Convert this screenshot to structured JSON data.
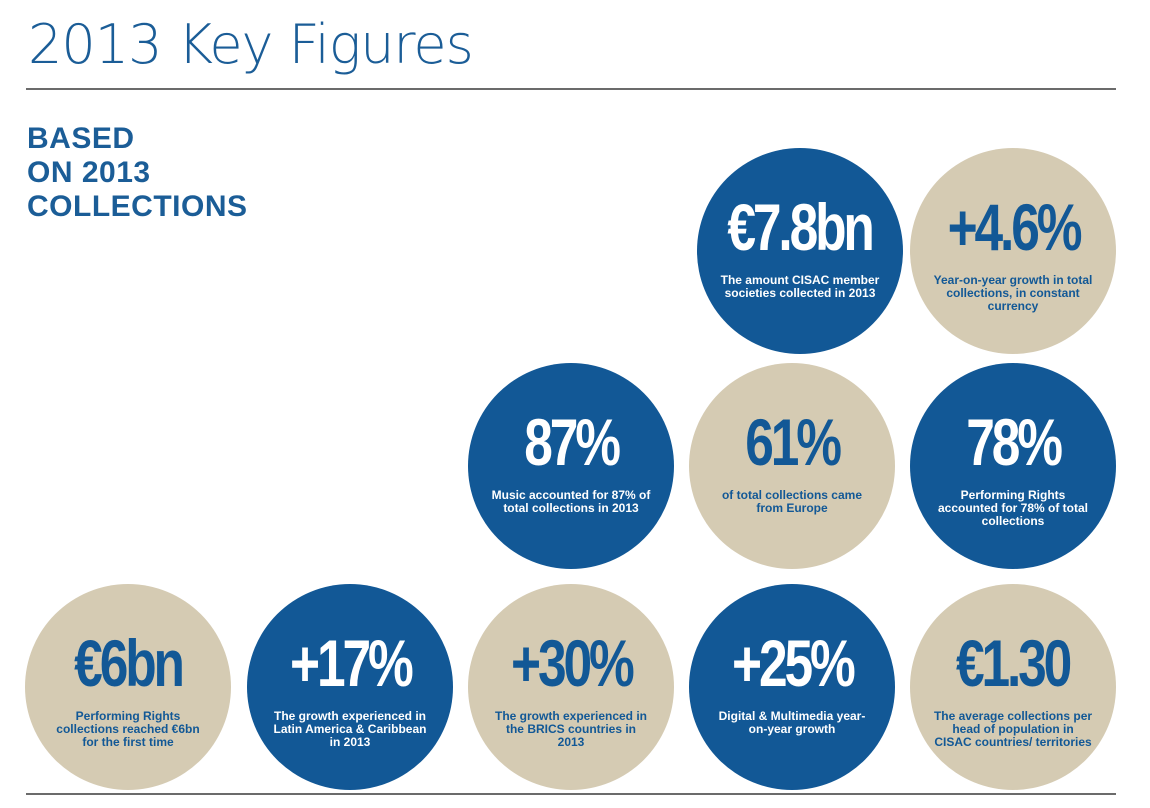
{
  "header": {
    "title": "2013 Key Figures"
  },
  "subtitle": {
    "lines": [
      "BASED",
      "ON 2013",
      "COLLECTIONS"
    ]
  },
  "colors": {
    "blue": "#125896",
    "beige": "#d5cbb3",
    "title_blue": "#1b5d97"
  },
  "figures": [
    {
      "value": "€7.8bn",
      "description": "The amount CISAC member societies collected in 2013",
      "color": "blue"
    },
    {
      "value": "+4.6%",
      "description": "Year-on-year growth in total collections, in constant currency",
      "color": "beige"
    },
    {
      "value": "87%",
      "description": "Music accounted for 87% of total collections in 2013",
      "color": "blue"
    },
    {
      "value": "61%",
      "description": "of total collections came from Europe",
      "color": "beige"
    },
    {
      "value": "78%",
      "description": "Performing Rights accounted for 78% of total collections",
      "color": "blue"
    },
    {
      "value": "€6bn",
      "description": "Performing Rights collections reached €6bn for the first time",
      "color": "beige"
    },
    {
      "value": "+17%",
      "description": "The growth experienced in Latin America & Caribbean in 2013",
      "color": "blue"
    },
    {
      "value": "+30%",
      "description": "The growth experienced in the BRICS countries in 2013",
      "color": "beige"
    },
    {
      "value": "+25%",
      "description": "Digital & Multimedia year-on-year growth",
      "color": "blue"
    },
    {
      "value": "€1.30",
      "description": "The average collections per head of population in CISAC countries/ territories",
      "color": "beige"
    }
  ]
}
